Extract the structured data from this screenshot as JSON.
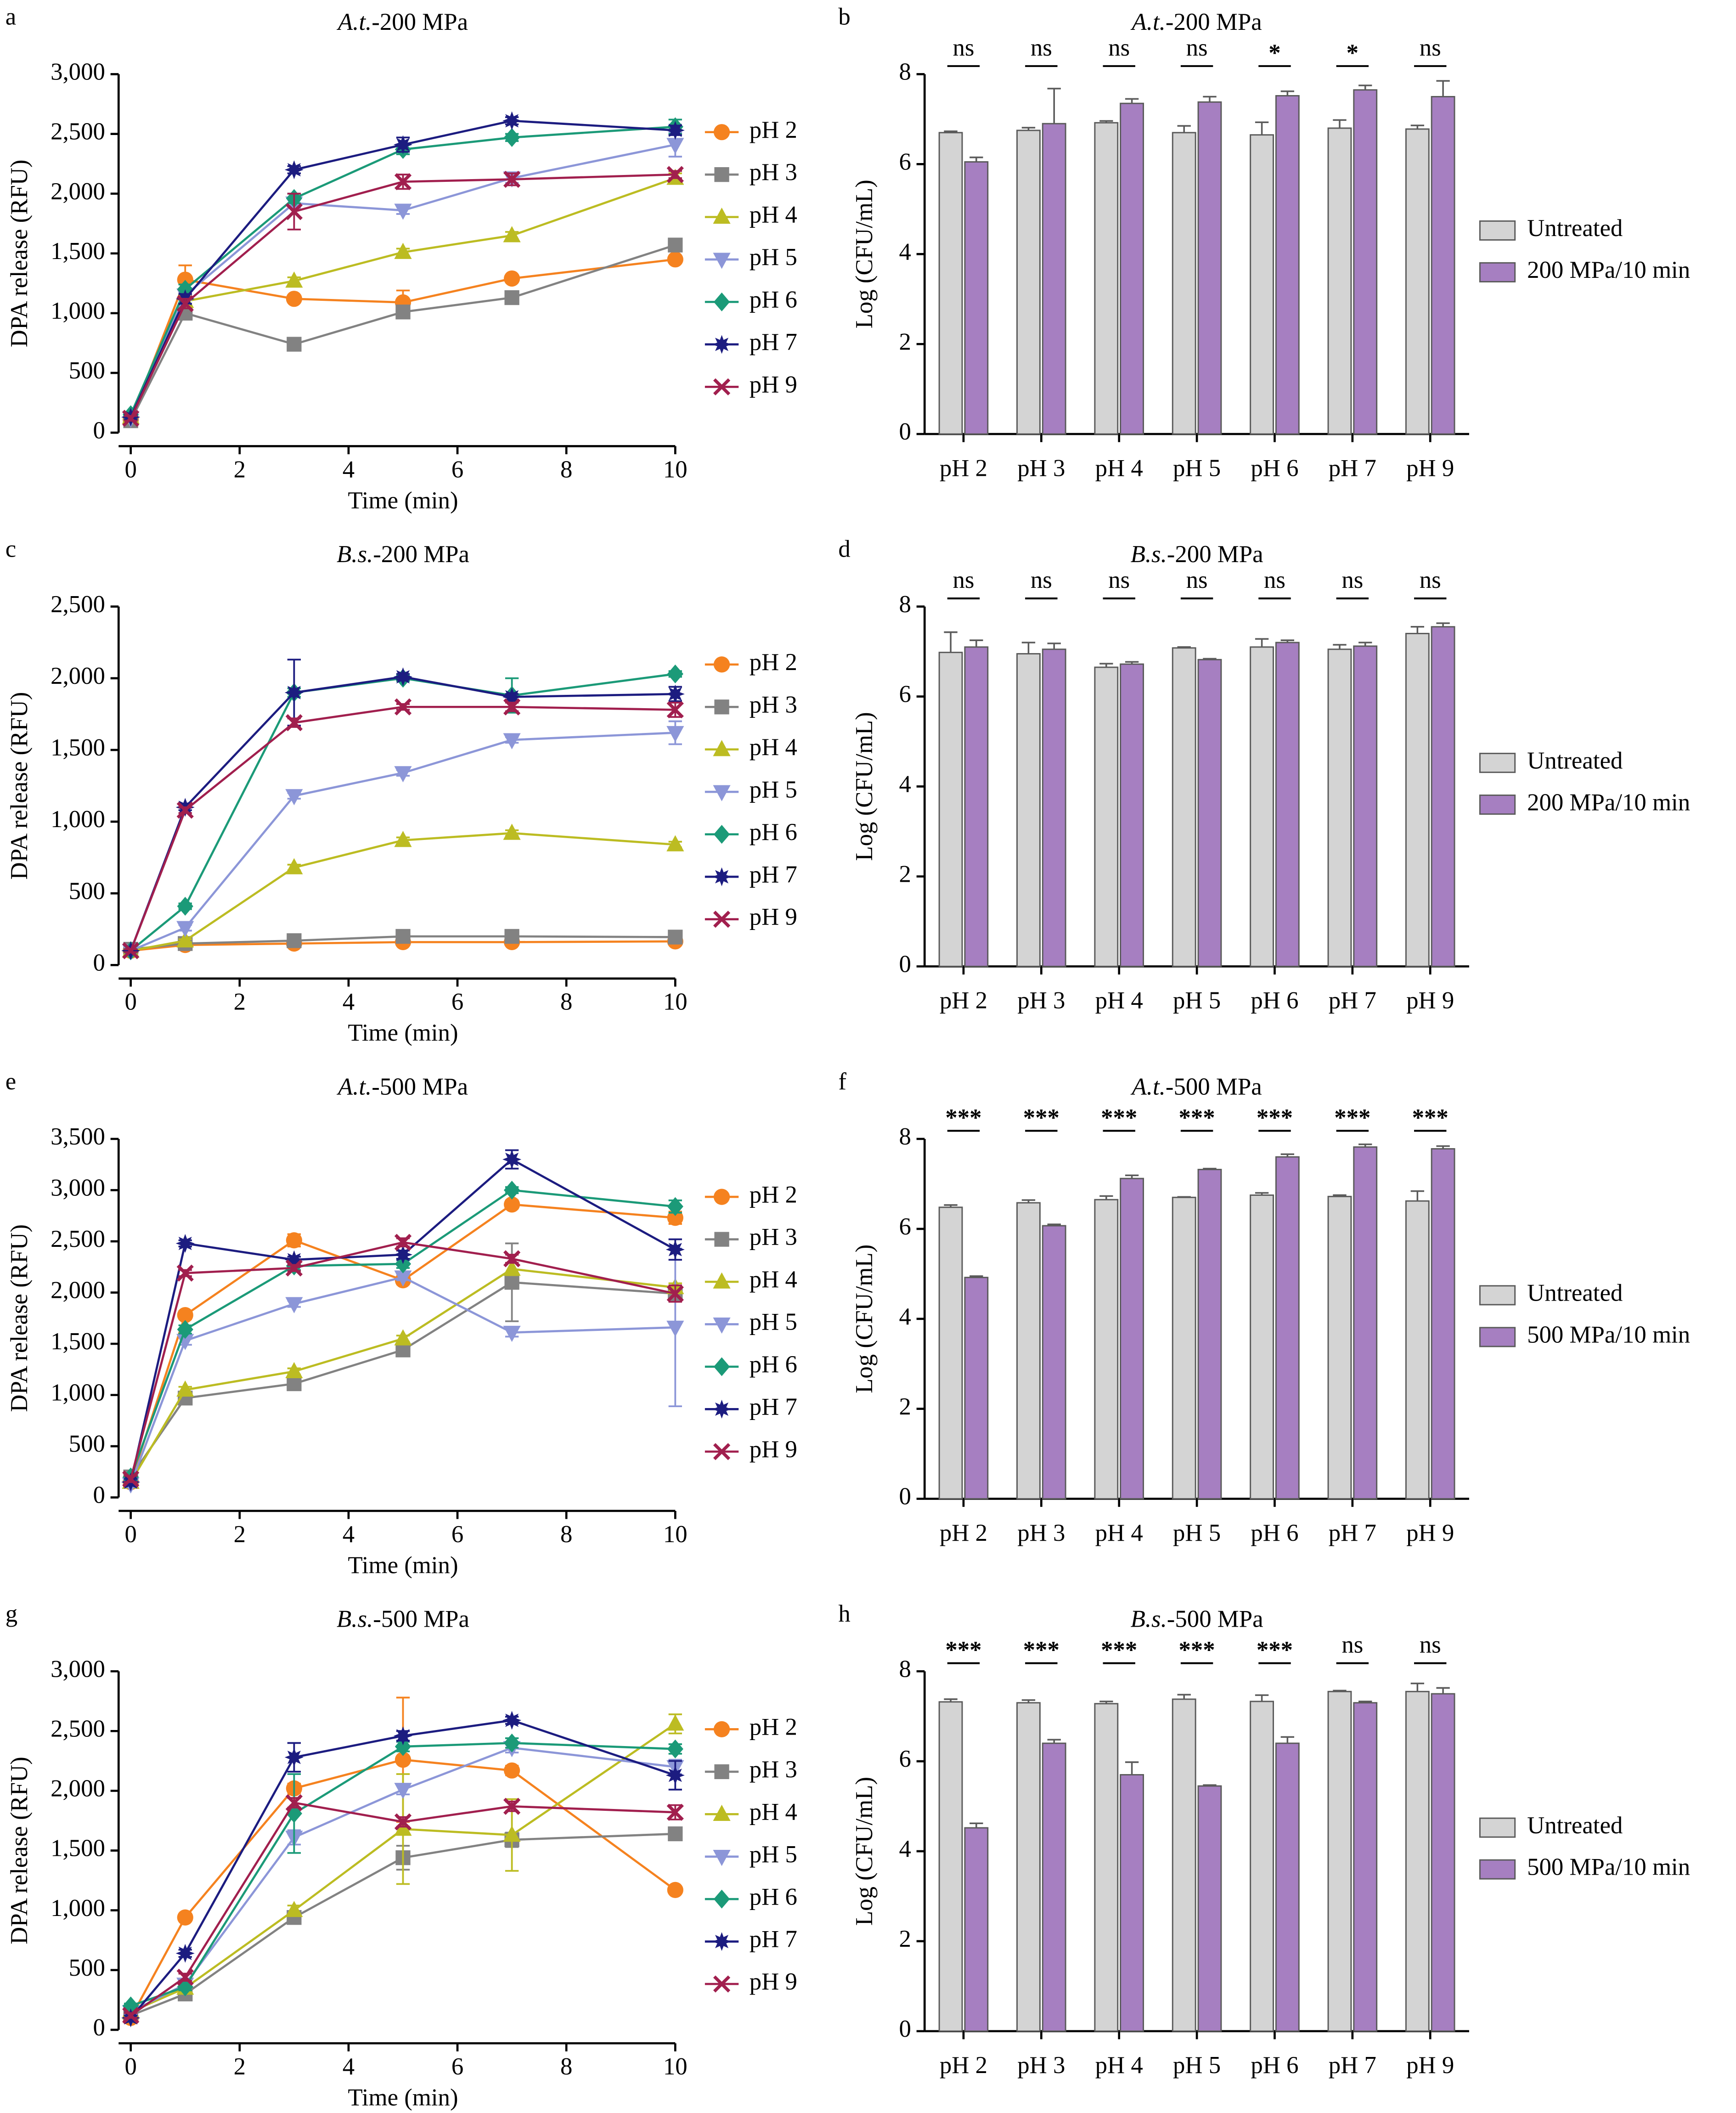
{
  "chart_data": [
    {
      "type": "line",
      "panel": "a",
      "title": "A.t.-200 MPa",
      "xlabel": "Time (min)",
      "ylabel": "DPA release (RFU)",
      "x": [
        0,
        1,
        3,
        5,
        7,
        10
      ],
      "xlim": [
        0,
        10
      ],
      "xticks": [
        0,
        2,
        4,
        6,
        8,
        10
      ],
      "ylim": [
        0,
        3000
      ],
      "yticks": [
        0,
        500,
        {
          "value": 1000,
          "label": "1,000"
        },
        {
          "value": 1500,
          "label": "1,500"
        },
        {
          "value": 2000,
          "label": "2,000"
        },
        {
          "value": 2500,
          "label": "2,500"
        },
        {
          "value": 3000,
          "label": "3,000"
        }
      ],
      "series": [
        {
          "name": "pH 2",
          "color": "#f5821f",
          "marker": "circle",
          "values": [
            110,
            1280,
            1120,
            1090,
            1290,
            1450
          ],
          "errors": [
            20,
            120,
            30,
            100,
            30,
            30
          ]
        },
        {
          "name": "pH 3",
          "color": "#828282",
          "marker": "square",
          "values": [
            100,
            1000,
            740,
            1010,
            1130,
            1570
          ],
          "errors": [
            20,
            40,
            30,
            40,
            30,
            30
          ]
        },
        {
          "name": "pH 4",
          "color": "#bcbc22",
          "marker": "triangle-up",
          "values": [
            130,
            1100,
            1270,
            1510,
            1650,
            2130
          ],
          "errors": [
            20,
            40,
            30,
            30,
            30,
            40
          ]
        },
        {
          "name": "pH 5",
          "color": "#8c96d8",
          "marker": "triangle-down",
          "values": [
            120,
            1150,
            1920,
            1860,
            2130,
            2410
          ],
          "errors": [
            20,
            40,
            40,
            30,
            40,
            100
          ]
        },
        {
          "name": "pH 6",
          "color": "#1b9a78",
          "marker": "diamond",
          "values": [
            150,
            1200,
            1960,
            2370,
            2470,
            2560
          ],
          "errors": [
            20,
            40,
            40,
            40,
            30,
            60
          ]
        },
        {
          "name": "pH 7",
          "color": "#1c1c80",
          "marker": "star",
          "values": [
            130,
            1120,
            2200,
            2410,
            2610,
            2530
          ],
          "errors": [
            20,
            40,
            30,
            60,
            30,
            40
          ]
        },
        {
          "name": "pH 9",
          "color": "#a11f4e",
          "marker": "x",
          "values": [
            120,
            1080,
            1850,
            2100,
            2120,
            2160
          ],
          "errors": [
            20,
            40,
            150,
            60,
            50,
            30
          ]
        }
      ]
    },
    {
      "type": "bar",
      "panel": "b",
      "title": "A.t.-200 MPa",
      "ylabel": "Log (CFU/mL)",
      "categories": [
        "pH 2",
        "pH 3",
        "pH 4",
        "pH 5",
        "pH 6",
        "pH 7",
        "pH 9"
      ],
      "ylim": [
        0,
        8
      ],
      "yticks": [
        0,
        2,
        4,
        6,
        8
      ],
      "significance": [
        "ns",
        "ns",
        "ns",
        "ns",
        "*",
        "*",
        "ns"
      ],
      "series": [
        {
          "name": "Untreated",
          "color": "#d4d4d4",
          "values": [
            6.7,
            6.75,
            6.92,
            6.7,
            6.65,
            6.8,
            6.78
          ],
          "errors": [
            0.03,
            0.06,
            0.04,
            0.15,
            0.28,
            0.18,
            0.08
          ]
        },
        {
          "name": "200 MPa/10 min",
          "color": "#a67fc1",
          "values": [
            6.05,
            6.9,
            7.35,
            7.38,
            7.52,
            7.65,
            7.5
          ],
          "errors": [
            0.1,
            0.78,
            0.1,
            0.12,
            0.1,
            0.1,
            0.35
          ]
        }
      ]
    },
    {
      "type": "line",
      "panel": "c",
      "title": "B.s.-200 MPa",
      "xlabel": "Time (min)",
      "ylabel": "DPA release (RFU)",
      "x": [
        0,
        1,
        3,
        5,
        7,
        10
      ],
      "xlim": [
        0,
        10
      ],
      "xticks": [
        0,
        2,
        4,
        6,
        8,
        10
      ],
      "ylim": [
        0,
        2500
      ],
      "yticks": [
        0,
        500,
        {
          "value": 1000,
          "label": "1,000"
        },
        {
          "value": 1500,
          "label": "1,500"
        },
        {
          "value": 2000,
          "label": "2,000"
        },
        {
          "value": 2500,
          "label": "2,500"
        }
      ],
      "series": [
        {
          "name": "pH 2",
          "color": "#f5821f",
          "marker": "circle",
          "values": [
            100,
            140,
            150,
            160,
            160,
            165
          ],
          "errors": [
            10,
            10,
            10,
            10,
            10,
            10
          ]
        },
        {
          "name": "pH 3",
          "color": "#828282",
          "marker": "square",
          "values": [
            110,
            150,
            170,
            200,
            200,
            195
          ],
          "errors": [
            10,
            10,
            10,
            10,
            10,
            10
          ]
        },
        {
          "name": "pH 4",
          "color": "#bcbc22",
          "marker": "triangle-up",
          "values": [
            100,
            170,
            680,
            870,
            920,
            840
          ],
          "errors": [
            10,
            10,
            20,
            20,
            20,
            20
          ]
        },
        {
          "name": "pH 5",
          "color": "#8c96d8",
          "marker": "triangle-down",
          "values": [
            100,
            260,
            1180,
            1340,
            1570,
            1620
          ],
          "errors": [
            10,
            20,
            20,
            20,
            20,
            80
          ]
        },
        {
          "name": "pH 6",
          "color": "#1b9a78",
          "marker": "diamond",
          "values": [
            100,
            410,
            1900,
            2000,
            1880,
            2030
          ],
          "errors": [
            10,
            20,
            30,
            20,
            120,
            20
          ]
        },
        {
          "name": "pH 7",
          "color": "#1c1c80",
          "marker": "star",
          "values": [
            100,
            1100,
            1900,
            2010,
            1870,
            1890
          ],
          "errors": [
            10,
            20,
            230,
            20,
            20,
            50
          ]
        },
        {
          "name": "pH 9",
          "color": "#a11f4e",
          "marker": "x",
          "values": [
            100,
            1080,
            1690,
            1800,
            1800,
            1780
          ],
          "errors": [
            10,
            20,
            30,
            20,
            30,
            50
          ]
        }
      ]
    },
    {
      "type": "bar",
      "panel": "d",
      "title": "B.s.-200 MPa",
      "ylabel": "Log (CFU/mL)",
      "categories": [
        "pH 2",
        "pH 3",
        "pH 4",
        "pH 5",
        "pH 6",
        "pH 7",
        "pH 9"
      ],
      "ylim": [
        0,
        8
      ],
      "yticks": [
        0,
        2,
        4,
        6,
        8
      ],
      "significance": [
        "ns",
        "ns",
        "ns",
        "ns",
        "ns",
        "ns",
        "ns"
      ],
      "series": [
        {
          "name": "Untreated",
          "color": "#d4d4d4",
          "values": [
            6.98,
            6.95,
            6.65,
            7.08,
            7.1,
            7.05,
            7.4
          ],
          "errors": [
            0.45,
            0.25,
            0.08,
            0.02,
            0.18,
            0.1,
            0.15
          ]
        },
        {
          "name": "200 MPa/10 min",
          "color": "#a67fc1",
          "values": [
            7.1,
            7.05,
            6.72,
            6.82,
            7.2,
            7.12,
            7.55
          ],
          "errors": [
            0.15,
            0.13,
            0.05,
            0.02,
            0.05,
            0.08,
            0.08
          ]
        }
      ]
    },
    {
      "type": "line",
      "panel": "e",
      "title": "A.t.-500 MPa",
      "xlabel": "Time (min)",
      "ylabel": "DPA release (RFU)",
      "x": [
        0,
        1,
        3,
        5,
        7,
        10
      ],
      "xlim": [
        0,
        10
      ],
      "xticks": [
        0,
        2,
        4,
        6,
        8,
        10
      ],
      "ylim": [
        0,
        3500
      ],
      "yticks": [
        0,
        500,
        {
          "value": 1000,
          "label": "1,000"
        },
        {
          "value": 1500,
          "label": "1,500"
        },
        {
          "value": 2000,
          "label": "2,000"
        },
        {
          "value": 2500,
          "label": "2,500"
        },
        {
          "value": 3000,
          "label": "3,000"
        },
        {
          "value": 3500,
          "label": "3,500"
        }
      ],
      "series": [
        {
          "name": "pH 2",
          "color": "#f5821f",
          "marker": "circle",
          "values": [
            150,
            1780,
            2510,
            2120,
            2860,
            2730
          ],
          "errors": [
            30,
            40,
            60,
            40,
            40,
            60
          ]
        },
        {
          "name": "pH 3",
          "color": "#828282",
          "marker": "square",
          "values": [
            200,
            970,
            1110,
            1440,
            2100,
            1990
          ],
          "errors": [
            30,
            30,
            30,
            40,
            380,
            60
          ]
        },
        {
          "name": "pH 4",
          "color": "#bcbc22",
          "marker": "triangle-up",
          "values": [
            150,
            1050,
            1230,
            1550,
            2230,
            2050
          ],
          "errors": [
            30,
            30,
            30,
            30,
            60,
            40
          ]
        },
        {
          "name": "pH 5",
          "color": "#8c96d8",
          "marker": "triangle-down",
          "values": [
            130,
            1530,
            1890,
            2150,
            1610,
            1660
          ],
          "errors": [
            30,
            40,
            30,
            30,
            40,
            770
          ]
        },
        {
          "name": "pH 6",
          "color": "#1b9a78",
          "marker": "diamond",
          "values": [
            200,
            1640,
            2260,
            2280,
            3000,
            2840
          ],
          "errors": [
            30,
            40,
            40,
            40,
            30,
            60
          ]
        },
        {
          "name": "pH 7",
          "color": "#1c1c80",
          "marker": "star",
          "values": [
            150,
            2480,
            2320,
            2370,
            3300,
            2420
          ],
          "errors": [
            30,
            30,
            30,
            40,
            90,
            100
          ]
        },
        {
          "name": "pH 9",
          "color": "#a11f4e",
          "marker": "x",
          "values": [
            180,
            2190,
            2240,
            2490,
            2330,
            1990
          ],
          "errors": [
            30,
            30,
            30,
            40,
            40,
            80
          ]
        }
      ]
    },
    {
      "type": "bar",
      "panel": "f",
      "title": "A.t.-500 MPa",
      "ylabel": "Log (CFU/mL)",
      "categories": [
        "pH 2",
        "pH 3",
        "pH 4",
        "pH 5",
        "pH 6",
        "pH 7",
        "pH 9"
      ],
      "ylim": [
        0,
        8
      ],
      "yticks": [
        0,
        2,
        4,
        6,
        8
      ],
      "significance": [
        "***",
        "***",
        "***",
        "***",
        "***",
        "***",
        "***"
      ],
      "series": [
        {
          "name": "Untreated",
          "color": "#d4d4d4",
          "values": [
            6.48,
            6.58,
            6.65,
            6.7,
            6.75,
            6.72,
            6.62
          ],
          "errors": [
            0.05,
            0.06,
            0.08,
            0.01,
            0.05,
            0.03,
            0.22
          ]
        },
        {
          "name": "500 MPa/10 min",
          "color": "#a67fc1",
          "values": [
            4.92,
            6.07,
            7.12,
            7.32,
            7.6,
            7.82,
            7.78
          ],
          "errors": [
            0.03,
            0.03,
            0.07,
            0.02,
            0.06,
            0.06,
            0.06
          ]
        }
      ]
    },
    {
      "type": "line",
      "panel": "g",
      "title": "B.s.-500 MPa",
      "xlabel": "Time (min)",
      "ylabel": "DPA release (RFU)",
      "x": [
        0,
        1,
        3,
        5,
        7,
        10
      ],
      "xlim": [
        0,
        10
      ],
      "xticks": [
        0,
        2,
        4,
        6,
        8,
        10
      ],
      "ylim": [
        0,
        3000
      ],
      "yticks": [
        0,
        500,
        {
          "value": 1000,
          "label": "1,000"
        },
        {
          "value": 1500,
          "label": "1,500"
        },
        {
          "value": 2000,
          "label": "2,000"
        },
        {
          "value": 2500,
          "label": "2,500"
        },
        {
          "value": 3000,
          "label": "3,000"
        }
      ],
      "series": [
        {
          "name": "pH 2",
          "color": "#f5821f",
          "marker": "circle",
          "values": [
            100,
            940,
            2020,
            2260,
            2170,
            1170
          ],
          "errors": [
            20,
            30,
            40,
            520,
            40,
            30
          ]
        },
        {
          "name": "pH 3",
          "color": "#828282",
          "marker": "square",
          "values": [
            120,
            300,
            940,
            1440,
            1590,
            1640
          ],
          "errors": [
            20,
            30,
            40,
            100,
            60,
            30
          ]
        },
        {
          "name": "pH 4",
          "color": "#bcbc22",
          "marker": "triangle-up",
          "values": [
            150,
            350,
            1000,
            1680,
            1630,
            2560
          ],
          "errors": [
            20,
            30,
            40,
            460,
            300,
            80
          ]
        },
        {
          "name": "pH 5",
          "color": "#8c96d8",
          "marker": "triangle-down",
          "values": [
            150,
            380,
            1610,
            2010,
            2360,
            2200
          ],
          "errors": [
            20,
            30,
            60,
            40,
            40,
            60
          ]
        },
        {
          "name": "pH 6",
          "color": "#1b9a78",
          "marker": "diamond",
          "values": [
            200,
            360,
            1810,
            2370,
            2400,
            2350
          ],
          "errors": [
            20,
            30,
            330,
            40,
            40,
            40
          ]
        },
        {
          "name": "pH 7",
          "color": "#1c1c80",
          "marker": "star",
          "values": [
            100,
            640,
            2280,
            2460,
            2590,
            2130
          ],
          "errors": [
            20,
            30,
            120,
            40,
            30,
            120
          ]
        },
        {
          "name": "pH 9",
          "color": "#a11f4e",
          "marker": "x",
          "values": [
            120,
            440,
            1900,
            1740,
            1870,
            1820
          ],
          "errors": [
            20,
            30,
            40,
            40,
            40,
            60
          ]
        }
      ]
    },
    {
      "type": "bar",
      "panel": "h",
      "title": "B.s.-500 MPa",
      "ylabel": "Log (CFU/mL)",
      "categories": [
        "pH 2",
        "pH 3",
        "pH 4",
        "pH 5",
        "pH 6",
        "pH 7",
        "pH 9"
      ],
      "ylim": [
        0,
        8
      ],
      "yticks": [
        0,
        2,
        4,
        6,
        8
      ],
      "significance": [
        "***",
        "***",
        "***",
        "***",
        "***",
        "ns",
        "ns"
      ],
      "series": [
        {
          "name": "Untreated",
          "color": "#d4d4d4",
          "values": [
            7.32,
            7.3,
            7.28,
            7.38,
            7.33,
            7.55,
            7.55
          ],
          "errors": [
            0.06,
            0.06,
            0.05,
            0.1,
            0.14,
            0.02,
            0.18
          ]
        },
        {
          "name": "500 MPa/10 min",
          "color": "#a67fc1",
          "values": [
            4.52,
            6.4,
            5.7,
            5.45,
            6.4,
            7.3,
            7.5
          ],
          "errors": [
            0.1,
            0.08,
            0.28,
            0.02,
            0.14,
            0.03,
            0.13
          ]
        }
      ]
    }
  ]
}
